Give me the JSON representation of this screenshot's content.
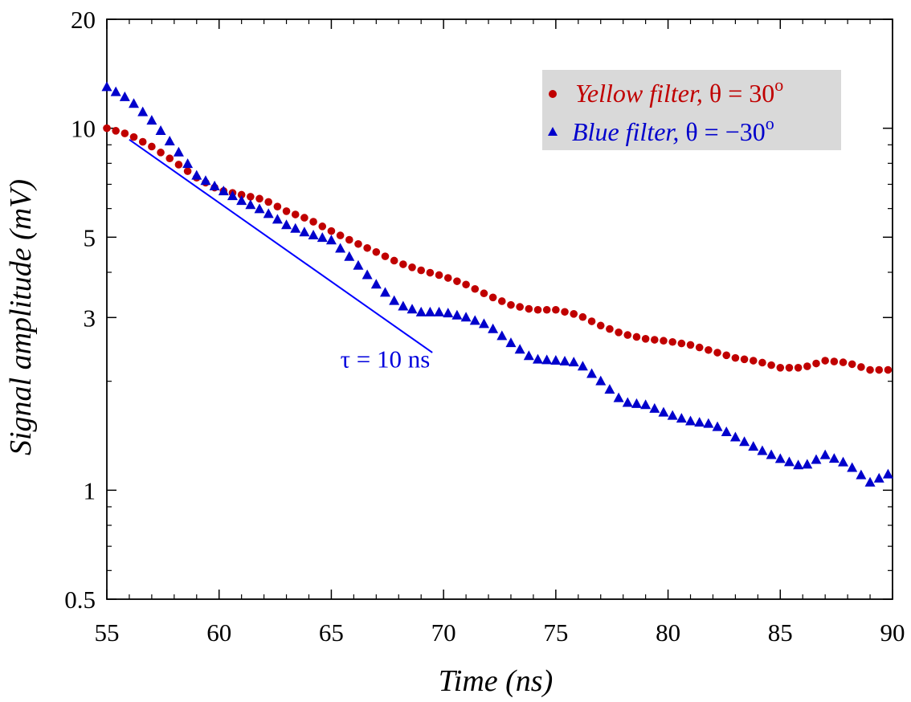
{
  "chart_data": {
    "type": "scatter",
    "xlabel": "Time (ns)",
    "ylabel": "Signal amplitude (mV)",
    "xlim": [
      55,
      90
    ],
    "ylim": [
      0.5,
      20
    ],
    "yscale": "log",
    "xticks": [
      55,
      60,
      65,
      70,
      75,
      80,
      85,
      90
    ],
    "xtick_labels": [
      "55",
      "60",
      "65",
      "70",
      "75",
      "80",
      "85",
      "90"
    ],
    "yticks": [
      0.5,
      1,
      3,
      5,
      10,
      20
    ],
    "ytick_labels": [
      "0.5",
      "1",
      "3",
      "5",
      "10",
      "20"
    ],
    "grid": false,
    "legend_position": "top-right",
    "legend": [
      {
        "label": "Yellow filter, θ = 30",
        "sup": "o",
        "marker": "circle",
        "color": "#c00000"
      },
      {
        "label": "Blue filter, θ = −30",
        "sup": "o",
        "marker": "triangle",
        "color": "#0000cc"
      }
    ],
    "series": [
      {
        "name": "Yellow filter, θ = 30°",
        "marker": "circle",
        "color": "#c00000",
        "anchors": [
          [
            55,
            10.0
          ],
          [
            56,
            9.6
          ],
          [
            57,
            8.9
          ],
          [
            58,
            8.1
          ],
          [
            59,
            7.3
          ],
          [
            60,
            6.75
          ],
          [
            61,
            6.55
          ],
          [
            62,
            6.35
          ],
          [
            63,
            5.9
          ],
          [
            64,
            5.6
          ],
          [
            65,
            5.2
          ],
          [
            66,
            4.85
          ],
          [
            67,
            4.55
          ],
          [
            68,
            4.25
          ],
          [
            69,
            4.05
          ],
          [
            70,
            3.9
          ],
          [
            71,
            3.7
          ],
          [
            72,
            3.45
          ],
          [
            73,
            3.25
          ],
          [
            74,
            3.15
          ],
          [
            75,
            3.15
          ],
          [
            76,
            3.05
          ],
          [
            77,
            2.85
          ],
          [
            78,
            2.7
          ],
          [
            79,
            2.62
          ],
          [
            80,
            2.58
          ],
          [
            81,
            2.52
          ],
          [
            82,
            2.42
          ],
          [
            83,
            2.32
          ],
          [
            84,
            2.27
          ],
          [
            85,
            2.18
          ],
          [
            86,
            2.18
          ],
          [
            87,
            2.28
          ],
          [
            88,
            2.25
          ],
          [
            89,
            2.15
          ],
          [
            90,
            2.15
          ]
        ]
      },
      {
        "name": "Blue filter, θ = −30°",
        "marker": "triangle",
        "color": "#0000cc",
        "anchors": [
          [
            55,
            13.0
          ],
          [
            56,
            12.0
          ],
          [
            57,
            10.5
          ],
          [
            58,
            8.9
          ],
          [
            59,
            7.4
          ],
          [
            60,
            6.8
          ],
          [
            61,
            6.3
          ],
          [
            62,
            5.9
          ],
          [
            63,
            5.4
          ],
          [
            64,
            5.1
          ],
          [
            65,
            4.9
          ],
          [
            66,
            4.3
          ],
          [
            67,
            3.7
          ],
          [
            68,
            3.25
          ],
          [
            69,
            3.1
          ],
          [
            70,
            3.1
          ],
          [
            71,
            3.0
          ],
          [
            72,
            2.85
          ],
          [
            73,
            2.55
          ],
          [
            74,
            2.3
          ],
          [
            75,
            2.28
          ],
          [
            76,
            2.25
          ],
          [
            77,
            2.0
          ],
          [
            78,
            1.75
          ],
          [
            79,
            1.72
          ],
          [
            80,
            1.62
          ],
          [
            81,
            1.55
          ],
          [
            82,
            1.52
          ],
          [
            83,
            1.4
          ],
          [
            84,
            1.3
          ],
          [
            85,
            1.22
          ],
          [
            86,
            1.16
          ],
          [
            87,
            1.25
          ],
          [
            88,
            1.18
          ],
          [
            89,
            1.05
          ],
          [
            90,
            1.12
          ]
        ]
      }
    ],
    "annotations": [
      {
        "text": "τ = 10 ns",
        "x": 67.4,
        "y": 2.3,
        "color": "#0000dd"
      }
    ],
    "reference_line": {
      "x0": 56,
      "y0": 9.3,
      "x1": 69.5,
      "y1": 2.4,
      "color": "#0000ff",
      "label": "τ = 10 ns"
    }
  }
}
